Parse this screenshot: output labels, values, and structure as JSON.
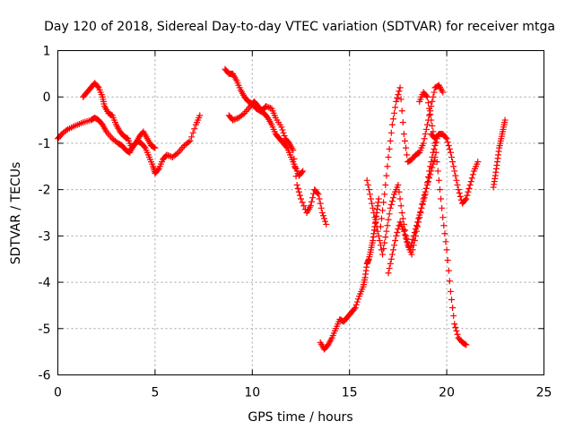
{
  "chart_data": {
    "type": "scatter",
    "title": "Day 120 of 2018, Sidereal Day-to-day VTEC variation (SDTVAR) for receiver mtga",
    "xlabel": "GPS time / hours",
    "ylabel": "SDTVAR / TECUs",
    "xlim": [
      0,
      25
    ],
    "ylim": [
      -6,
      1
    ],
    "xticks": [
      "0",
      "5",
      "10",
      "15",
      "20",
      "25"
    ],
    "yticks": [
      "1",
      "0",
      "-1",
      "-2",
      "-3",
      "-4",
      "-5",
      "-6"
    ],
    "grid": true,
    "marker": "plus",
    "color": "#ff0000",
    "series": [
      {
        "name": "segment-1",
        "x": [
          0.0,
          0.2,
          0.5,
          0.9,
          1.3,
          1.7,
          1.9,
          2.1,
          2.3,
          2.5,
          2.8,
          3.1,
          3.3,
          3.5,
          3.7,
          3.9,
          4.1,
          4.3,
          4.5,
          4.7,
          4.9,
          5.0,
          5.2,
          5.4,
          5.6,
          5.9,
          6.2,
          6.5,
          6.8,
          7.1,
          7.3
        ],
        "y": [
          -0.9,
          -0.8,
          -0.7,
          -0.62,
          -0.55,
          -0.5,
          -0.45,
          -0.5,
          -0.6,
          -0.75,
          -0.9,
          -1.0,
          -1.05,
          -1.15,
          -1.2,
          -1.05,
          -0.95,
          -1.0,
          -1.1,
          -1.3,
          -1.5,
          -1.65,
          -1.55,
          -1.35,
          -1.25,
          -1.3,
          -1.2,
          -1.05,
          -0.95,
          -0.6,
          -0.4
        ]
      },
      {
        "name": "segment-2",
        "x": [
          1.3,
          1.5,
          1.7,
          1.9,
          2.1,
          2.3,
          2.4,
          2.6,
          2.8,
          3.0,
          3.2,
          3.4,
          3.6,
          3.8,
          4.0,
          4.2,
          4.4,
          4.6,
          4.8,
          5.0
        ],
        "y": [
          0.0,
          0.1,
          0.2,
          0.3,
          0.2,
          0.0,
          -0.2,
          -0.35,
          -0.4,
          -0.6,
          -0.75,
          -0.85,
          -0.9,
          -1.1,
          -1.0,
          -0.85,
          -0.75,
          -0.9,
          -1.05,
          -1.1
        ]
      },
      {
        "name": "segment-3",
        "x": [
          8.6,
          8.8,
          9.0,
          9.2,
          9.4,
          9.6,
          9.8,
          10.0,
          10.2,
          10.4,
          10.6,
          10.8,
          11.0,
          11.2,
          11.4,
          11.6,
          11.8,
          12.0,
          12.2,
          12.4,
          12.6
        ],
        "y": [
          0.6,
          0.5,
          0.5,
          0.35,
          0.15,
          0.0,
          -0.1,
          -0.15,
          -0.25,
          -0.3,
          -0.35,
          -0.45,
          -0.6,
          -0.8,
          -0.9,
          -1.0,
          -1.1,
          -1.3,
          -1.5,
          -1.7,
          -1.6
        ]
      },
      {
        "name": "segment-4",
        "x": [
          8.8,
          9.0,
          9.3,
          9.6,
          9.9,
          10.1,
          10.3,
          10.5,
          10.7,
          11.0,
          11.2,
          11.5,
          11.7,
          11.9,
          12.1,
          12.3,
          12.5,
          12.8,
          13.0,
          13.2,
          13.4,
          13.6,
          13.8
        ],
        "y": [
          -0.4,
          -0.5,
          -0.45,
          -0.35,
          -0.2,
          -0.1,
          -0.2,
          -0.3,
          -0.2,
          -0.25,
          -0.45,
          -0.65,
          -0.9,
          -1.0,
          -1.15,
          -1.9,
          -2.2,
          -2.5,
          -2.35,
          -2.0,
          -2.1,
          -2.5,
          -2.75
        ]
      },
      {
        "name": "segment-5",
        "x": [
          13.5,
          13.7,
          13.9,
          14.1,
          14.3,
          14.5,
          14.7,
          14.9,
          15.1,
          15.3,
          15.5,
          15.7,
          15.8,
          15.9,
          16.0,
          16.1,
          16.2,
          16.3,
          16.4,
          16.5
        ],
        "y": [
          -5.3,
          -5.45,
          -5.35,
          -5.2,
          -5.0,
          -4.8,
          -4.85,
          -4.75,
          -4.65,
          -4.55,
          -4.3,
          -4.1,
          -3.9,
          -3.6,
          -3.5,
          -3.3,
          -3.1,
          -2.8,
          -2.5,
          -2.2
        ]
      },
      {
        "name": "segment-6",
        "x": [
          15.9,
          16.1,
          16.3,
          16.5,
          16.7,
          16.9,
          17.1,
          17.3,
          17.5,
          17.7,
          17.9,
          18.1,
          18.3,
          18.5,
          18.7,
          18.9,
          19.1,
          19.3,
          19.5
        ],
        "y": [
          -1.8,
          -2.2,
          -2.6,
          -3.0,
          -3.4,
          -2.9,
          -2.4,
          -2.1,
          -1.9,
          -2.5,
          -3.0,
          -3.3,
          -3.0,
          -2.7,
          -2.4,
          -2.1,
          -1.6,
          -1.2,
          -0.9
        ]
      },
      {
        "name": "segment-7",
        "x": [
          16.6,
          16.8,
          17.0,
          17.2,
          17.4,
          17.6,
          17.8,
          18.0,
          18.2,
          18.4,
          18.6,
          18.8,
          19.0,
          19.2,
          19.4,
          19.6,
          19.8
        ],
        "y": [
          -2.8,
          -2.1,
          -1.3,
          -0.6,
          -0.1,
          0.2,
          -0.8,
          -1.4,
          -1.35,
          -1.25,
          -1.2,
          -1.0,
          -0.6,
          -0.2,
          0.2,
          0.25,
          0.1
        ]
      },
      {
        "name": "segment-8",
        "x": [
          17.0,
          17.2,
          17.4,
          17.6,
          17.8,
          18.0,
          18.2,
          18.4,
          18.6,
          18.8,
          19.0,
          19.2,
          19.4
        ],
        "y": [
          -3.8,
          -3.4,
          -3.0,
          -2.7,
          -2.9,
          -3.2,
          -3.4,
          -3.0,
          -2.6,
          -2.2,
          -1.9,
          -1.6,
          -1.3
        ]
      },
      {
        "name": "segment-9",
        "x": [
          18.6,
          18.8,
          19.0,
          19.2,
          19.4,
          19.6,
          19.8,
          20.0,
          20.2,
          20.4,
          20.6,
          20.8,
          21.0
        ],
        "y": [
          -0.1,
          0.1,
          0.0,
          -0.5,
          -1.0,
          -1.8,
          -2.6,
          -3.3,
          -4.2,
          -4.9,
          -5.2,
          -5.3,
          -5.35
        ]
      },
      {
        "name": "segment-10",
        "x": [
          19.2,
          19.4,
          19.6,
          19.8,
          20.0,
          20.2,
          20.4,
          20.6,
          20.8,
          21.0,
          21.2,
          21.4,
          21.6
        ],
        "y": [
          -0.8,
          -0.9,
          -0.8,
          -0.8,
          -0.9,
          -1.2,
          -1.6,
          -2.0,
          -2.3,
          -2.2,
          -1.9,
          -1.6,
          -1.4
        ]
      },
      {
        "name": "segment-11",
        "x": [
          22.4,
          22.5,
          22.6,
          22.7,
          22.8,
          22.9,
          23.0
        ],
        "y": [
          -1.95,
          -1.7,
          -1.4,
          -1.1,
          -0.9,
          -0.7,
          -0.5
        ]
      }
    ]
  }
}
